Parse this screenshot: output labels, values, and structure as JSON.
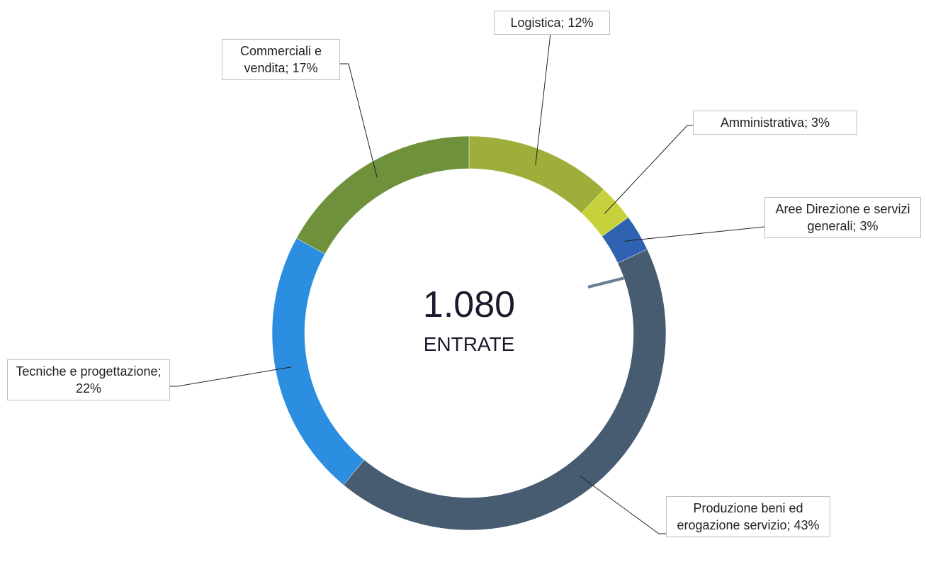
{
  "chart_data": {
    "type": "donut",
    "categories": [
      "Logistica",
      "Amministrativa",
      "Aree Direzione e servizi generali",
      "Produzione beni ed erogazione servizio",
      "Tecniche e progettazione",
      "Commerciali e vendita"
    ],
    "values": [
      12,
      3,
      3,
      43,
      22,
      17
    ],
    "value_labels": [
      "Logistica; 12%",
      "Amministrativa; 3%",
      "Aree Direzione e servizi generali; 3%",
      "Produzione beni ed erogazione servizio; 43%",
      "Tecniche e progettazione; 22%",
      "Commerciali e vendita; 17%"
    ],
    "colors": [
      "#9fae3a",
      "#c6d13c",
      "#2f62b0",
      "#475c70",
      "#2b8ee0",
      "#6f913c"
    ],
    "center_value": "1.080",
    "center_label": "ENTRATE"
  }
}
